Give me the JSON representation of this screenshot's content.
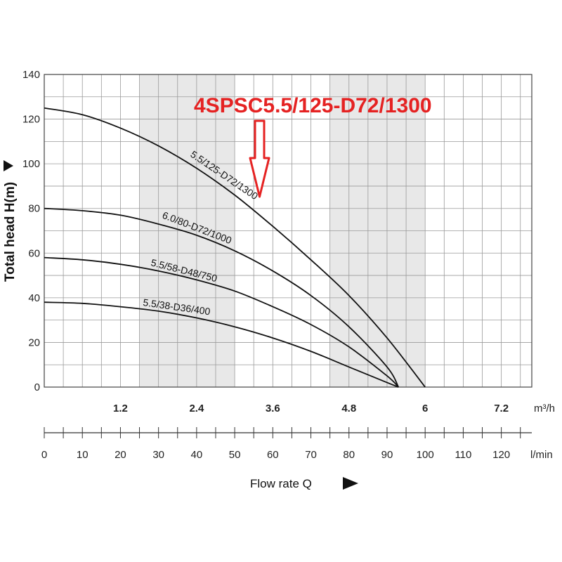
{
  "chart_data": {
    "type": "line",
    "title": "",
    "callout": "4SPSC5.5/125-D72/1300",
    "ylabel": "Total head H(m)",
    "xlabel": "Flow rate Q",
    "ylim": [
      0,
      140
    ],
    "y_ticks": [
      0,
      20,
      40,
      60,
      80,
      100,
      120,
      140
    ],
    "x_lmin_range": [
      0,
      128
    ],
    "x_lmin_ticks": [
      0,
      10,
      20,
      30,
      40,
      50,
      60,
      70,
      80,
      90,
      100,
      110,
      120
    ],
    "x_lmin_unit": "l/min",
    "x_m3h_ticks": [
      "1.2",
      "2.4",
      "3.6",
      "4.8",
      "6",
      "7.2"
    ],
    "x_m3h_unit": "m³/h",
    "grid": true,
    "shaded_bands_lmin": [
      [
        25,
        50
      ],
      [
        75,
        100
      ]
    ],
    "series": [
      {
        "name": "5.5/125-D72/1300",
        "x": [
          0,
          10,
          20,
          30,
          40,
          50,
          60,
          70,
          80,
          90,
          100
        ],
        "y": [
          125,
          122,
          116,
          108,
          98,
          86,
          72,
          57,
          41,
          22,
          0
        ]
      },
      {
        "name": "6.0/80-D72/1000",
        "x": [
          0,
          10,
          20,
          30,
          40,
          50,
          60,
          70,
          80,
          90,
          93
        ],
        "y": [
          80,
          79,
          77,
          73,
          68,
          61,
          52,
          41,
          27,
          9,
          0
        ]
      },
      {
        "name": "5.5/58-D48/750",
        "x": [
          0,
          10,
          20,
          30,
          40,
          50,
          60,
          70,
          80,
          90,
          93
        ],
        "y": [
          58,
          57,
          55,
          52,
          48,
          43,
          36,
          28,
          18,
          5,
          0
        ]
      },
      {
        "name": "5.5/38-D36/400",
        "x": [
          0,
          10,
          20,
          30,
          40,
          50,
          60,
          70,
          80,
          90,
          93
        ],
        "y": [
          38,
          37.5,
          36,
          34,
          31,
          27,
          22,
          16,
          9,
          2,
          0
        ]
      }
    ]
  }
}
